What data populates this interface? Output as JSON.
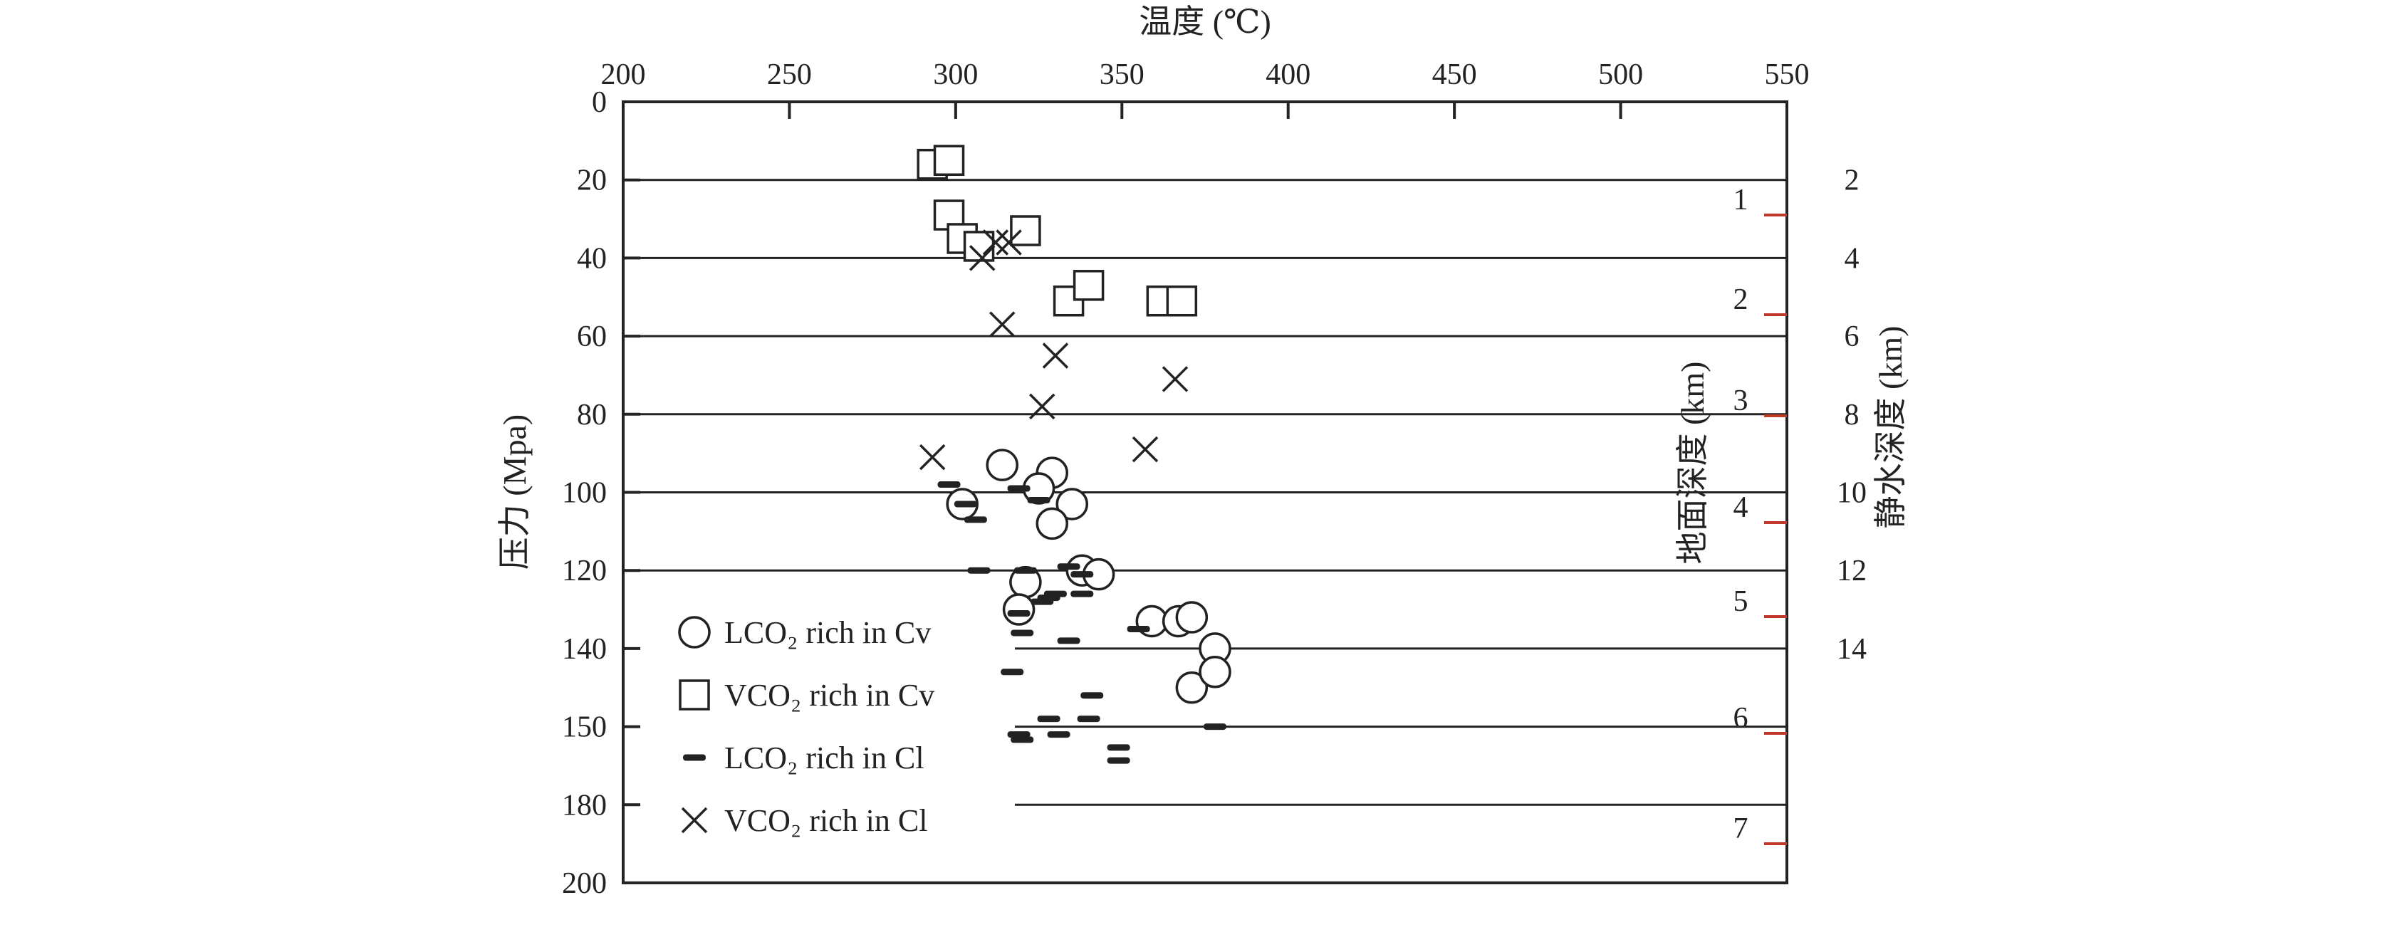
{
  "chart_data": {
    "type": "scatter",
    "xlabel": "温度 (℃)",
    "ylabel": "压力 (Mpa)",
    "y2label": "静水深度 (km)",
    "y3label": "地面深度 (km)",
    "xlim": [
      200,
      550
    ],
    "ylim": [
      0,
      200
    ],
    "x_ticks": [
      "200",
      "250",
      "300",
      "350",
      "400",
      "450",
      "500",
      "550"
    ],
    "y_ticks": [
      "0",
      "20",
      "40",
      "60",
      "80",
      "100",
      "120",
      "140",
      "150",
      "180",
      "200"
    ],
    "hydro_ticks": [
      "2",
      "4",
      "6",
      "8",
      "10",
      "12",
      "14"
    ],
    "ground_ticks": [
      "1",
      "2",
      "3",
      "4",
      "5",
      "6",
      "7"
    ],
    "accent_color": "#c0392b",
    "series": [
      {
        "name": "LCO₂ rich in Cv",
        "marker": "circle",
        "points": [
          [
            314,
            93
          ],
          [
            329,
            95
          ],
          [
            325,
            99
          ],
          [
            302,
            103
          ],
          [
            335,
            103
          ],
          [
            329,
            108
          ],
          [
            338,
            120
          ],
          [
            343,
            121
          ],
          [
            321,
            123
          ],
          [
            319,
            130
          ],
          [
            359,
            133
          ],
          [
            367,
            133
          ],
          [
            371,
            132
          ],
          [
            378,
            140
          ],
          [
            371,
            145
          ],
          [
            378,
            143
          ]
        ]
      },
      {
        "name": "VCO₂ rich in Cv",
        "marker": "square",
        "points": [
          [
            293,
            16
          ],
          [
            298,
            15
          ],
          [
            298,
            29
          ],
          [
            302,
            35
          ],
          [
            307,
            37
          ],
          [
            321,
            33
          ],
          [
            334,
            51
          ],
          [
            340,
            47
          ],
          [
            362,
            51
          ],
          [
            368,
            51
          ]
        ]
      },
      {
        "name": "LCO₂ rich in Cl",
        "marker": "dash",
        "points": [
          [
            298,
            98
          ],
          [
            303,
            103
          ],
          [
            306,
            107
          ],
          [
            307,
            120
          ],
          [
            319,
            99
          ],
          [
            325,
            102
          ],
          [
            321,
            120
          ],
          [
            334,
            119
          ],
          [
            338,
            121
          ],
          [
            338,
            126
          ],
          [
            328,
            127
          ],
          [
            330,
            126
          ],
          [
            326,
            128
          ],
          [
            319,
            131
          ],
          [
            355,
            135
          ],
          [
            320,
            136
          ],
          [
            334,
            138
          ],
          [
            317,
            143
          ],
          [
            341,
            146
          ],
          [
            328,
            149
          ],
          [
            340,
            149
          ],
          [
            378,
            150
          ],
          [
            319,
            153
          ],
          [
            331,
            153
          ],
          [
            320,
            155
          ],
          [
            349,
            158
          ],
          [
            349,
            163
          ]
        ]
      },
      {
        "name": "VCO₂ rich in Cl",
        "marker": "x",
        "points": [
          [
            293,
            91
          ],
          [
            308,
            40
          ],
          [
            312,
            36
          ],
          [
            316,
            36
          ],
          [
            314,
            57
          ],
          [
            330,
            65
          ],
          [
            326,
            78
          ],
          [
            357,
            89
          ],
          [
            366,
            71
          ]
        ]
      }
    ]
  }
}
